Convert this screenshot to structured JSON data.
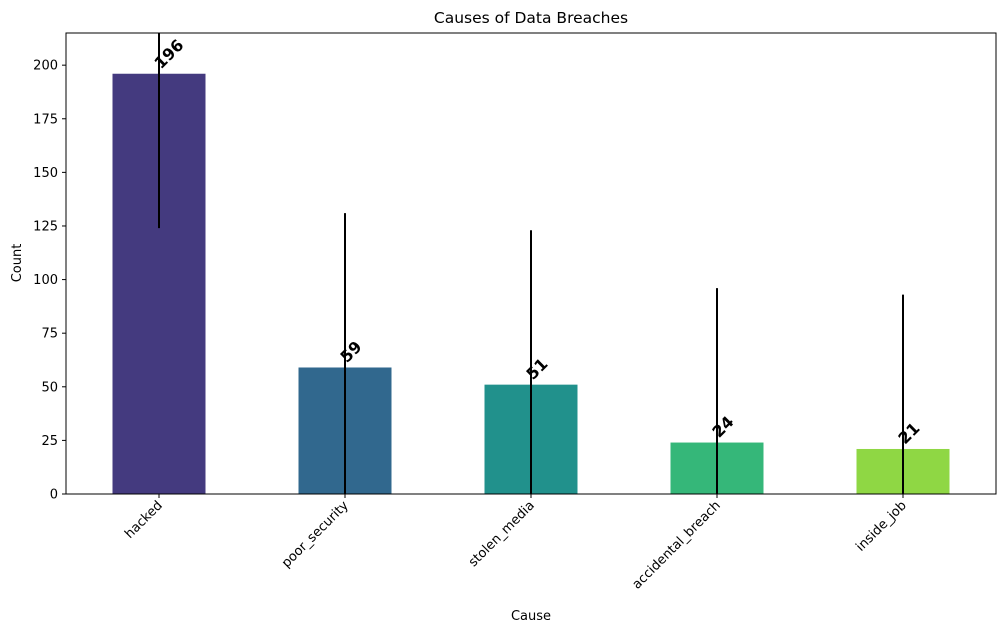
{
  "chart_data": {
    "type": "bar",
    "title": "Causes of Data Breaches",
    "xlabel": "Cause",
    "ylabel": "Count",
    "categories": [
      "hacked",
      "poor_security",
      "stolen_media",
      "accidental_breach",
      "inside_job"
    ],
    "values": [
      196,
      59,
      51,
      24,
      21
    ],
    "error_bars": [
      {
        "low": 124,
        "high": 215
      },
      {
        "low": 0,
        "high": 131
      },
      {
        "low": 0,
        "high": 123
      },
      {
        "low": 0,
        "high": 96
      },
      {
        "low": 0,
        "high": 93
      }
    ],
    "colors": [
      "#443a7f",
      "#31688e",
      "#21918c",
      "#35b779",
      "#8fd744"
    ],
    "ylim": [
      0,
      215
    ],
    "yticks": [
      0,
      25,
      50,
      75,
      100,
      125,
      150,
      175,
      200
    ],
    "xtick_rotation": 45,
    "grid": false,
    "legend": "none"
  }
}
